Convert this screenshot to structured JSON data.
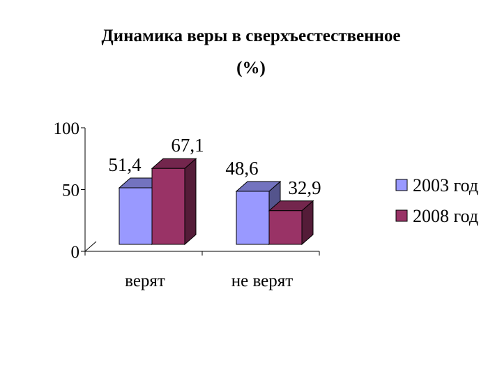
{
  "chart_data": {
    "type": "bar",
    "title_line1": "Динамика веры в сверхъестественное",
    "title_line2": "(%)",
    "categories": [
      "верят",
      "не верят"
    ],
    "series": [
      {
        "name": "2003 год",
        "values": [
          51.4,
          48.6
        ],
        "labels": [
          "51,4",
          "48,6"
        ],
        "color": "#9999ff"
      },
      {
        "name": "2008 год",
        "values": [
          67.1,
          32.9
        ],
        "labels": [
          "67,1",
          "32,9"
        ],
        "color": "#993366"
      }
    ],
    "yticks": [
      0,
      50,
      100
    ],
    "ylim": [
      0,
      100
    ],
    "legend_position": "right",
    "grid": false,
    "style": "3d-column"
  }
}
